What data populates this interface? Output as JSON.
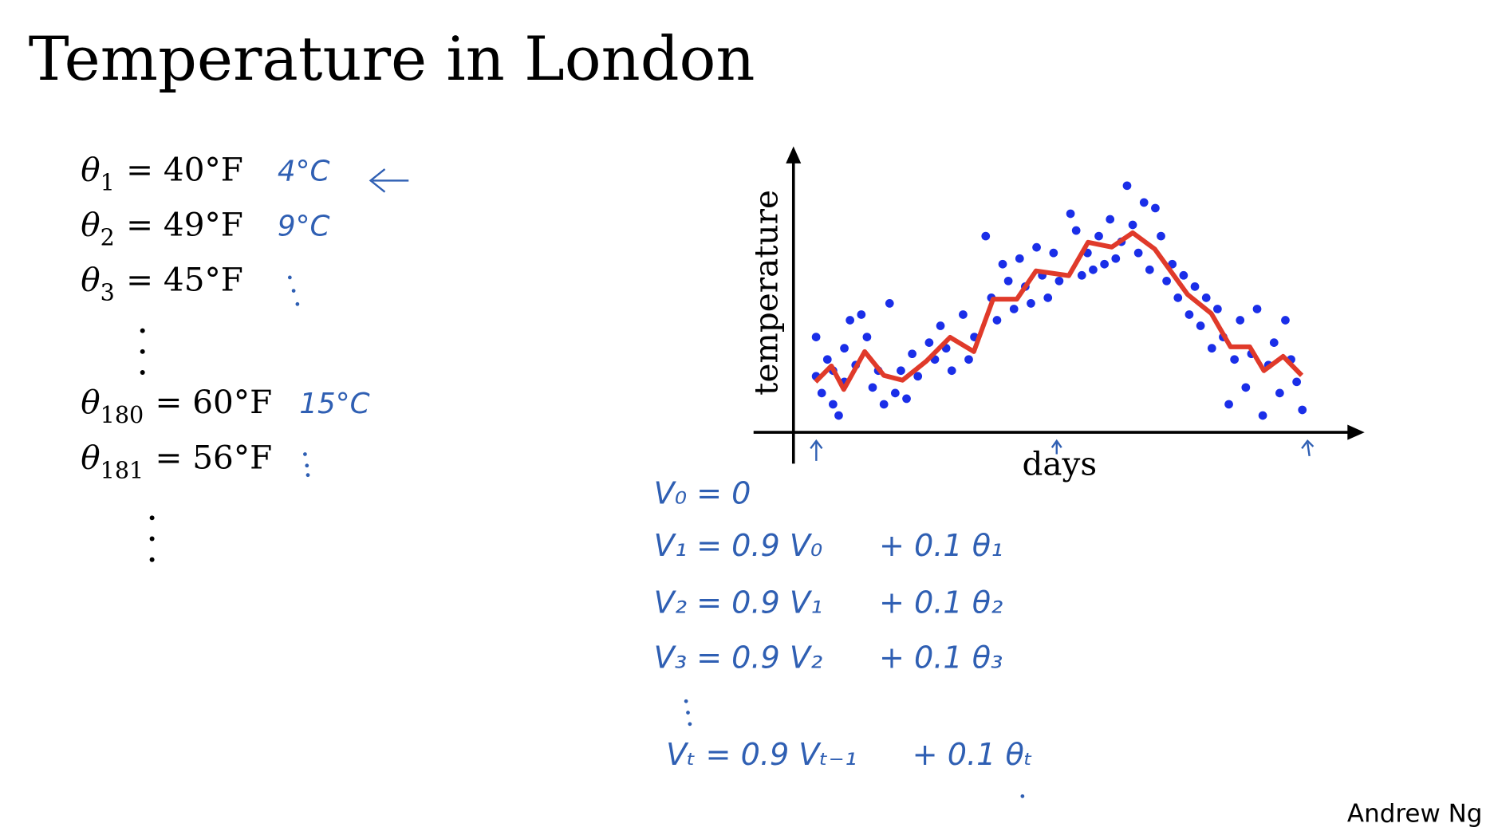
{
  "title": "Temperature in London",
  "equations": [
    {
      "var": "θ",
      "sub": "1",
      "value": "= 40°F",
      "note": "4°C"
    },
    {
      "var": "θ",
      "sub": "2",
      "value": "= 49°F",
      "note": "9°C"
    },
    {
      "var": "θ",
      "sub": "3",
      "value": "= 45°F"
    },
    {
      "var": "θ",
      "sub": "180",
      "value": "= 60°F",
      "note": "15°C"
    },
    {
      "var": "θ",
      "sub": "181",
      "value": "= 56°F"
    }
  ],
  "handwritten": [
    {
      "left": "V₀ = 0"
    },
    {
      "left": "V₁ = 0.9 V₀",
      "right": "+ 0.1 θ₁"
    },
    {
      "left": "V₂ = 0.9 V₁",
      "right": "+ 0.1 θ₂"
    },
    {
      "left": "V₃ = 0.9 V₂",
      "right": "+ 0.1 θ₃"
    },
    {
      "left": "Vₜ = 0.9 Vₜ₋₁",
      "right": "+ 0.1 θₜ"
    }
  ],
  "author": "Andrew Ng",
  "chart_data": {
    "type": "scatter",
    "xlabel": "days",
    "ylabel": "temperature",
    "xlim": [
      0,
      100
    ],
    "ylim": [
      0,
      100
    ],
    "scatter": {
      "color": "#1a2ee8",
      "x": [
        4,
        4,
        5,
        6,
        7,
        7,
        8,
        9,
        9,
        10,
        11,
        12,
        13,
        14,
        15,
        16,
        17,
        18,
        19,
        20,
        21,
        22,
        24,
        25,
        26,
        27,
        28,
        30,
        31,
        32,
        34,
        35,
        36,
        37,
        38,
        39,
        40,
        41,
        42,
        43,
        44,
        45,
        46,
        47,
        49,
        50,
        51,
        52,
        53,
        54,
        55,
        56,
        57,
        58,
        59,
        60,
        61,
        62,
        63,
        64,
        65,
        66,
        67,
        68,
        69,
        70,
        71,
        72,
        73,
        74,
        75,
        76,
        77,
        78,
        79,
        80,
        81,
        82,
        83,
        84,
        85,
        86,
        87,
        88,
        89,
        90
      ],
      "y": [
        34,
        20,
        14,
        26,
        10,
        22,
        6,
        30,
        18,
        40,
        24,
        42,
        34,
        16,
        22,
        10,
        46,
        14,
        22,
        12,
        28,
        20,
        32,
        26,
        38,
        30,
        22,
        42,
        26,
        34,
        70,
        48,
        40,
        60,
        54,
        44,
        62,
        52,
        46,
        66,
        56,
        48,
        64,
        54,
        78,
        72,
        56,
        64,
        58,
        70,
        60,
        76,
        62,
        68,
        88,
        74,
        64,
        82,
        58,
        80,
        70,
        54,
        60,
        48,
        56,
        42,
        52,
        38,
        48,
        30,
        44,
        34,
        10,
        26,
        40,
        16,
        28,
        44,
        6,
        24,
        32,
        14,
        40,
        26,
        18,
        8
      ]
    },
    "line": {
      "color": "#e03a2a",
      "x": [
        3.9,
        6.7,
        8.9,
        12.6,
        16,
        19.3,
        23.5,
        27.7,
        31.9,
        35.3,
        39.5,
        42.9,
        48.7,
        52.1,
        56.3,
        60,
        63.9,
        69.7,
        73.9,
        77.3,
        80.7,
        83.2,
        86.6,
        89.9
      ],
      "y": [
        18,
        23.7,
        15.3,
        28.8,
        20.3,
        18.6,
        25.4,
        33.9,
        28.8,
        47.5,
        47.5,
        57.6,
        55.9,
        67.8,
        66.1,
        71.2,
        65.4,
        49.2,
        42.4,
        30.5,
        30.5,
        22,
        27.1,
        20.3
      ]
    }
  }
}
